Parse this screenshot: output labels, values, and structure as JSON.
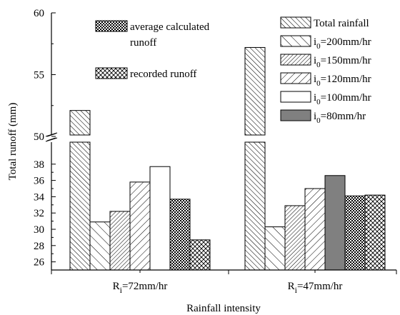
{
  "chart_data": {
    "type": "bar",
    "xlabel": "Rainfall intensity",
    "ylabel": "Total runoff (mm)",
    "y_axis_break": [
      38.5,
      49.5
    ],
    "yticks_upper": [
      50,
      55,
      60
    ],
    "yticks_lower": [
      26,
      28,
      30,
      32,
      34,
      36,
      38
    ],
    "groups": [
      {
        "label_main": "R",
        "label_sub": "i",
        "label_rest": "=72mm/hr",
        "bars": [
          {
            "series": "total",
            "value": 52.1
          },
          {
            "series": "i200",
            "value": 30.9
          },
          {
            "series": "i150",
            "value": 32.2
          },
          {
            "series": "i120",
            "value": 35.8
          },
          {
            "series": "i100",
            "value": 37.7
          },
          {
            "series": "avg",
            "value": 33.7
          },
          {
            "series": "recorded",
            "value": 28.7
          }
        ]
      },
      {
        "label_main": "R",
        "label_sub": "i",
        "label_rest": "=47mm/hr",
        "bars": [
          {
            "series": "total",
            "value": 57.2
          },
          {
            "series": "i200",
            "value": 30.3
          },
          {
            "series": "i150",
            "value": 32.9
          },
          {
            "series": "i120",
            "value": 35.0
          },
          {
            "series": "i80",
            "value": 36.6
          },
          {
            "series": "avg",
            "value": 34.1
          },
          {
            "series": "recorded",
            "value": 34.2
          }
        ]
      }
    ],
    "legend_left": [
      {
        "series": "avg",
        "line1": "average calculated",
        "line2": "runoff"
      },
      {
        "series": "recorded",
        "line1": "recorded runoff"
      }
    ],
    "legend_right": [
      {
        "series": "total",
        "text": "Total rainfall"
      },
      {
        "series": "i200",
        "pre": "i",
        "sub": "0",
        "post": "=200mm/hr"
      },
      {
        "series": "i150",
        "pre": "i",
        "sub": "0",
        "post": "=150mm/hr"
      },
      {
        "series": "i120",
        "pre": "i",
        "sub": "0",
        "post": "=120mm/hr"
      },
      {
        "series": "i100",
        "pre": "i",
        "sub": "0",
        "post": "=100mm/hr"
      },
      {
        "series": "i80",
        "pre": "i",
        "sub": "0",
        "post": "=80mm/hr"
      }
    ],
    "colors": {
      "i100": "#ffffff",
      "i80": "#808080",
      "axis": "#000000"
    }
  }
}
